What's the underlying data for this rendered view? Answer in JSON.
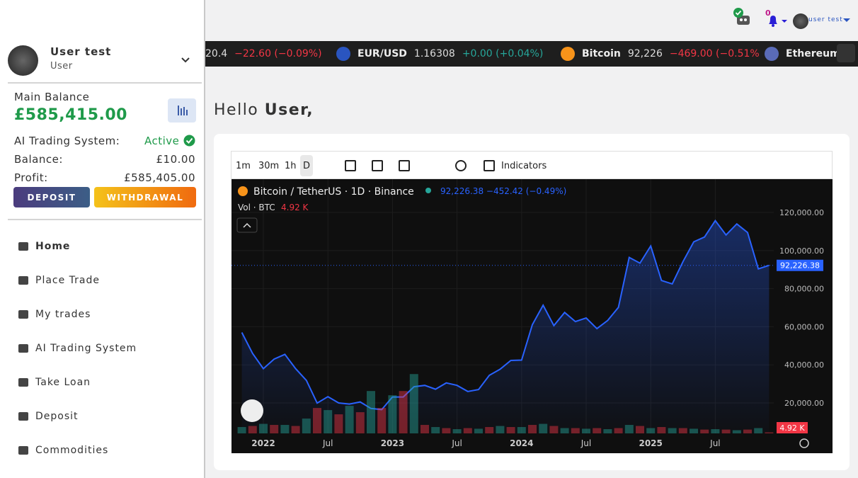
{
  "sidebar": {
    "user_name": "User test",
    "user_role": "User",
    "balance_label": "Main Balance",
    "balance_amount": "£585,415.00",
    "ai_label": "AI Trading System:",
    "ai_status": "Active",
    "sub_balance_label": "Balance:",
    "sub_balance_value": "£10.00",
    "profit_label": "Profit:",
    "profit_value": "£585,405.00",
    "deposit_button": "DEPOSIT",
    "withdrawal_button": "WITHDRAWAL",
    "nav": [
      "Home",
      "Place Trade",
      "My trades",
      "AI Trading System",
      "Take Loan",
      "Deposit",
      "Commodities"
    ]
  },
  "topbar": {
    "notification_count": "0",
    "user_menu": "user test"
  },
  "ticker": [
    {
      "price": "20.4",
      "change": "−22.60 (−0.09%)"
    },
    {
      "symbol": "EUR/USD",
      "price": "1.16308",
      "change": "+0.00 (+0.04%)"
    },
    {
      "symbol": "Bitcoin",
      "price": "92,226",
      "change": "−469.00 (−0.51%"
    },
    {
      "symbol": "Ethereum"
    }
  ],
  "greeting": {
    "text": "Hello",
    "name": "User,"
  },
  "toolbar": {
    "intervals": [
      "1m",
      "30m",
      "1h",
      "D"
    ],
    "indicators": "Indicators"
  },
  "chart_data": {
    "type": "line",
    "quote": "92,226.38 −452.42 (−0.49%)",
    "categories": [
      null,
      null,
      "2022",
      null,
      null,
      null,
      null,
      null,
      "Jul",
      null,
      null,
      null,
      null,
      null,
      "2023",
      null,
      null,
      null,
      null,
      null,
      "Jul",
      null,
      null,
      null,
      null,
      null,
      "2024",
      null,
      null,
      null,
      null,
      null,
      "Jul",
      null,
      null,
      null,
      null,
      null,
      "2025",
      null,
      null,
      null,
      null,
      null,
      "Jul",
      null,
      null,
      null,
      null,
      null
    ],
    "series": [
      {
        "name": "Bitcoin / TetherUS · 1D · Binance",
        "color": "#2962ff",
        "values": [
          57000,
          46000,
          38000,
          43000,
          45500,
          38000,
          31800,
          19900,
          23300,
          20000,
          19400,
          20500,
          17100,
          16500,
          23100,
          23100,
          28500,
          29200,
          27200,
          30500,
          29200,
          26000,
          27000,
          34500,
          37700,
          42300,
          42500,
          61100,
          71300,
          60600,
          67500,
          62700,
          64600,
          59000,
          63300,
          70200,
          96400,
          93400,
          102400,
          84300,
          82500,
          94200,
          104600,
          107100,
          115700,
          108200,
          114000,
          109500,
          90400,
          92226.38
        ],
        "last_label": {
          "value": 92226.38,
          "label": "92,226.38"
        }
      },
      {
        "name": "Vol · BTC",
        "color": "#26a69a",
        "axis": "y2",
        "values": [
          30,
          35,
          45,
          40,
          40,
          35,
          70,
          120,
          110,
          90,
          130,
          100,
          200,
          120,
          180,
          200,
          280,
          40,
          30,
          25,
          20,
          25,
          22,
          30,
          35,
          30,
          30,
          40,
          45,
          35,
          25,
          25,
          22,
          25,
          20,
          25,
          40,
          35,
          25,
          30,
          25,
          25,
          22,
          18,
          20,
          18,
          15,
          18,
          25,
          4.92
        ],
        "last_label": "4.92 K"
      }
    ],
    "ylim": [
      4000,
      137500
    ],
    "yticks": [
      {
        "value": 20000,
        "label": "20,000.00"
      },
      {
        "value": 40000,
        "label": "40,000.00"
      },
      {
        "value": 60000,
        "label": "60,000.00"
      },
      {
        "value": 80000,
        "label": "80,000.00"
      },
      {
        "value": 100000,
        "label": "100,000.00"
      },
      {
        "value": 120000,
        "label": "120,000.00"
      }
    ],
    "y2lim": [
      0,
      1200
    ],
    "grid": true
  }
}
